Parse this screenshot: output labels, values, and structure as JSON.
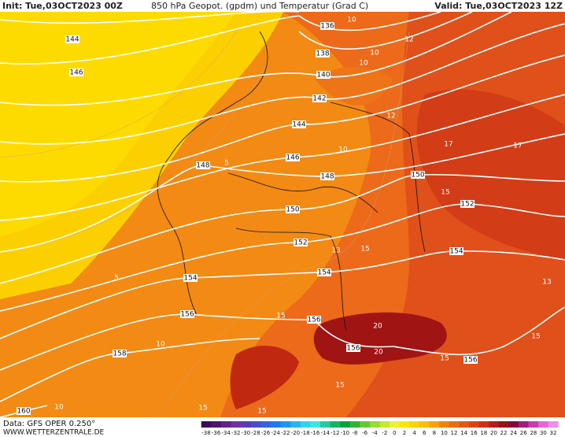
{
  "header": {
    "init": "Init: Tue,03OCT2023 00Z",
    "title": "850 hPa Geopot. (gpdm) und Temperatur (Grad C)",
    "valid": "Valid: Tue,03OCT2023 12Z"
  },
  "map": {
    "geopotential_labels": [
      144,
      146,
      136,
      138,
      140,
      142,
      144,
      146,
      148,
      148,
      150,
      150,
      152,
      152,
      154,
      154,
      154,
      156,
      156,
      156,
      156,
      158,
      160
    ],
    "temperature_labels": [
      10,
      10,
      10,
      10,
      10,
      10,
      5,
      5,
      15,
      15,
      15,
      15,
      15,
      15,
      15,
      15,
      20,
      20,
      12,
      12,
      17,
      17,
      13,
      13
    ]
  },
  "colorbar": {
    "ticks": [
      -38,
      -36,
      -34,
      -32,
      -30,
      -28,
      -26,
      -24,
      -22,
      -20,
      -18,
      -16,
      -14,
      -12,
      -10,
      -8,
      -6,
      -4,
      -2,
      0,
      2,
      4,
      6,
      8,
      10,
      12,
      14,
      16,
      18,
      20,
      22,
      24,
      26,
      28,
      30,
      32
    ],
    "colors": [
      "#3c0a5a",
      "#50146e",
      "#64208a",
      "#7030a0",
      "#5a3cb4",
      "#4650c8",
      "#3264dc",
      "#1e78f0",
      "#1e96f0",
      "#28b4f0",
      "#32d2f0",
      "#3ce6dc",
      "#28c8a0",
      "#14b464",
      "#0aa03c",
      "#32b432",
      "#64c832",
      "#96dc32",
      "#c8e632",
      "#f0f032",
      "#ffe600",
      "#ffd200",
      "#ffbe00",
      "#ffa000",
      "#f58200",
      "#eb6e14",
      "#e15a14",
      "#d74614",
      "#cd3214",
      "#b41e1e",
      "#961414",
      "#820a3c",
      "#a01e78",
      "#c83cb4",
      "#e664dc",
      "#f08cf0"
    ]
  },
  "footer": {
    "source": "Data: GFS OPER 0.250°",
    "site": "WWW.WETTERZENTRALE.DE"
  }
}
